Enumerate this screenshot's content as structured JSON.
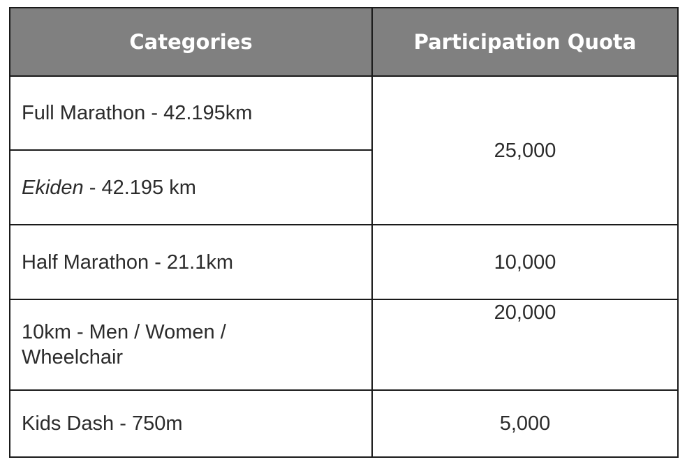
{
  "table": {
    "headers": {
      "categories": "Categories",
      "quota": "Participation Quota"
    },
    "rows": [
      {
        "category": "Full Marathon - 42.195km",
        "quota": "25,000"
      },
      {
        "category_em": "Ekiden",
        "category_rest": " - 42.195 km"
      },
      {
        "category": "Half Marathon - 21.1km",
        "quota": "10,000"
      },
      {
        "category_line1": "10km - Men / Women /",
        "category_line2": "Wheelchair",
        "quota": "20,000"
      },
      {
        "category": "Kids Dash - 750m",
        "quota": "5,000"
      }
    ]
  }
}
